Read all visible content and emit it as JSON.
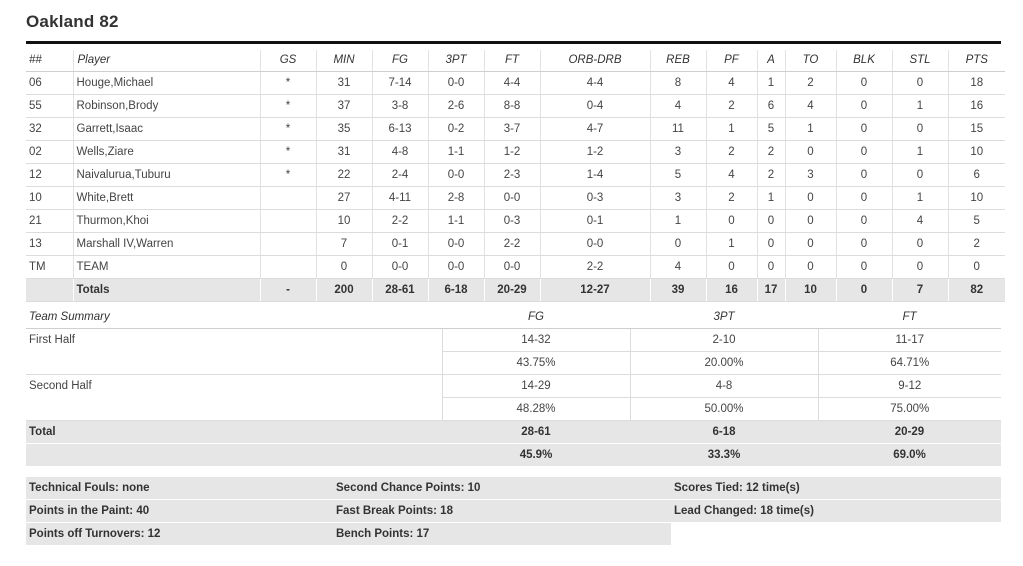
{
  "title": "Oakland 82",
  "box": {
    "headers": [
      "##",
      "Player",
      "GS",
      "MIN",
      "FG",
      "3PT",
      "FT",
      "ORB-DRB",
      "REB",
      "PF",
      "A",
      "TO",
      "BLK",
      "STL",
      "PTS"
    ],
    "rows": [
      [
        "06",
        "Houge,Michael",
        "*",
        "31",
        "7-14",
        "0-0",
        "4-4",
        "4-4",
        "8",
        "4",
        "1",
        "2",
        "0",
        "0",
        "18"
      ],
      [
        "55",
        "Robinson,Brody",
        "*",
        "37",
        "3-8",
        "2-6",
        "8-8",
        "0-4",
        "4",
        "2",
        "6",
        "4",
        "0",
        "1",
        "16"
      ],
      [
        "32",
        "Garrett,Isaac",
        "*",
        "35",
        "6-13",
        "0-2",
        "3-7",
        "4-7",
        "11",
        "1",
        "5",
        "1",
        "0",
        "0",
        "15"
      ],
      [
        "02",
        "Wells,Ziare",
        "*",
        "31",
        "4-8",
        "1-1",
        "1-2",
        "1-2",
        "3",
        "2",
        "2",
        "0",
        "0",
        "1",
        "10"
      ],
      [
        "12",
        "Naivalurua,Tuburu",
        "*",
        "22",
        "2-4",
        "0-0",
        "2-3",
        "1-4",
        "5",
        "4",
        "2",
        "3",
        "0",
        "0",
        "6"
      ],
      [
        "10",
        "White,Brett",
        "",
        "27",
        "4-11",
        "2-8",
        "0-0",
        "0-3",
        "3",
        "2",
        "1",
        "0",
        "0",
        "1",
        "10"
      ],
      [
        "21",
        "Thurmon,Khoi",
        "",
        "10",
        "2-2",
        "1-1",
        "0-3",
        "0-1",
        "1",
        "0",
        "0",
        "0",
        "0",
        "4",
        "5"
      ],
      [
        "13",
        "Marshall IV,Warren",
        "",
        "7",
        "0-1",
        "0-0",
        "2-2",
        "0-0",
        "0",
        "1",
        "0",
        "0",
        "0",
        "0",
        "2"
      ],
      [
        "TM",
        "TEAM",
        "",
        "0",
        "0-0",
        "0-0",
        "0-0",
        "2-2",
        "4",
        "0",
        "0",
        "0",
        "0",
        "0",
        "0"
      ]
    ],
    "totals": [
      "",
      "Totals",
      "-",
      "200",
      "28-61",
      "6-18",
      "20-29",
      "12-27",
      "39",
      "16",
      "17",
      "10",
      "0",
      "7",
      "82"
    ]
  },
  "summary": {
    "headers": [
      "Team Summary",
      "FG",
      "3PT",
      "FT"
    ],
    "first_half": {
      "label": "First Half",
      "made": [
        "14-32",
        "2-10",
        "11-17"
      ],
      "pct": [
        "43.75%",
        "20.00%",
        "64.71%"
      ]
    },
    "second_half": {
      "label": "Second Half",
      "made": [
        "14-29",
        "4-8",
        "9-12"
      ],
      "pct": [
        "48.28%",
        "50.00%",
        "75.00%"
      ]
    },
    "total": {
      "label": "Total",
      "made": [
        "28-61",
        "6-18",
        "20-29"
      ],
      "pct": [
        "45.9%",
        "33.3%",
        "69.0%"
      ]
    }
  },
  "misc": {
    "technical_fouls": "Technical Fouls: none",
    "second_chance": "Second Chance Points: 10",
    "scores_tied": "Scores Tied: 12 time(s)",
    "paint": "Points in the Paint: 40",
    "fast_break": "Fast Break Points: 18",
    "lead_changed": "Lead Changed: 18 time(s)",
    "turnovers": "Points off Turnovers: 12",
    "bench": "Bench Points: 17"
  }
}
